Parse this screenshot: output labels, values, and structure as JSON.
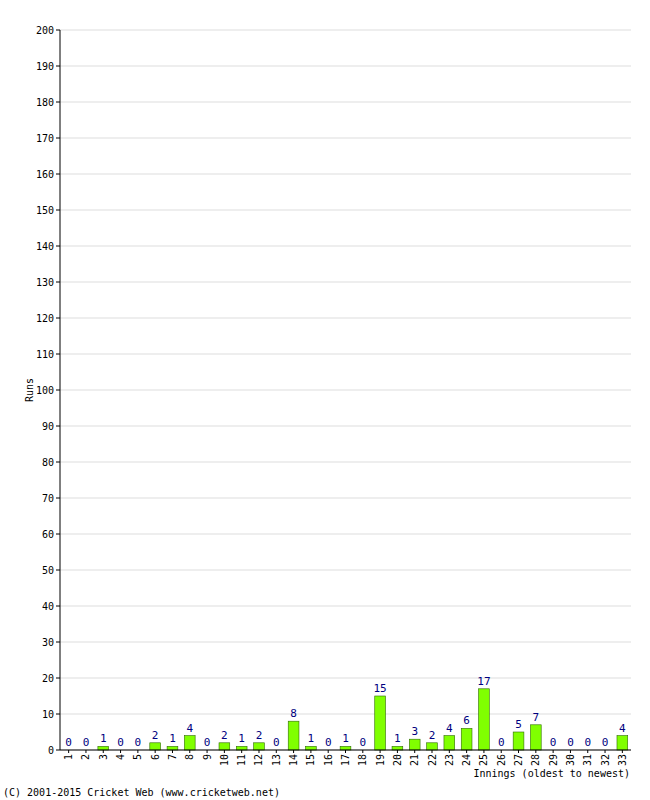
{
  "chart_data": {
    "type": "bar",
    "y_label": "Runs",
    "x_label": "Innings (oldest to newest)",
    "footer": "(C) 2001-2015 Cricket Web (www.cricketweb.net)",
    "categories": [
      "1",
      "2",
      "3",
      "4",
      "5",
      "6",
      "7",
      "8",
      "9",
      "10",
      "11",
      "12",
      "13",
      "14",
      "15",
      "16",
      "17",
      "18",
      "19",
      "20",
      "21",
      "22",
      "23",
      "24",
      "25",
      "26",
      "27",
      "28",
      "29",
      "30",
      "31",
      "32",
      "33"
    ],
    "values": [
      0,
      0,
      1,
      0,
      0,
      2,
      1,
      4,
      0,
      2,
      1,
      2,
      0,
      8,
      1,
      0,
      1,
      0,
      15,
      1,
      3,
      2,
      4,
      6,
      17,
      0,
      5,
      7,
      0,
      0,
      0,
      0,
      4
    ],
    "color": "#80ff00",
    "ylim": [
      0,
      200
    ],
    "yticks": [
      0,
      10,
      20,
      30,
      40,
      50,
      60,
      70,
      80,
      90,
      100,
      110,
      120,
      130,
      140,
      150,
      160,
      170,
      180,
      190,
      200
    ],
    "grid": true,
    "data_labels": true
  }
}
